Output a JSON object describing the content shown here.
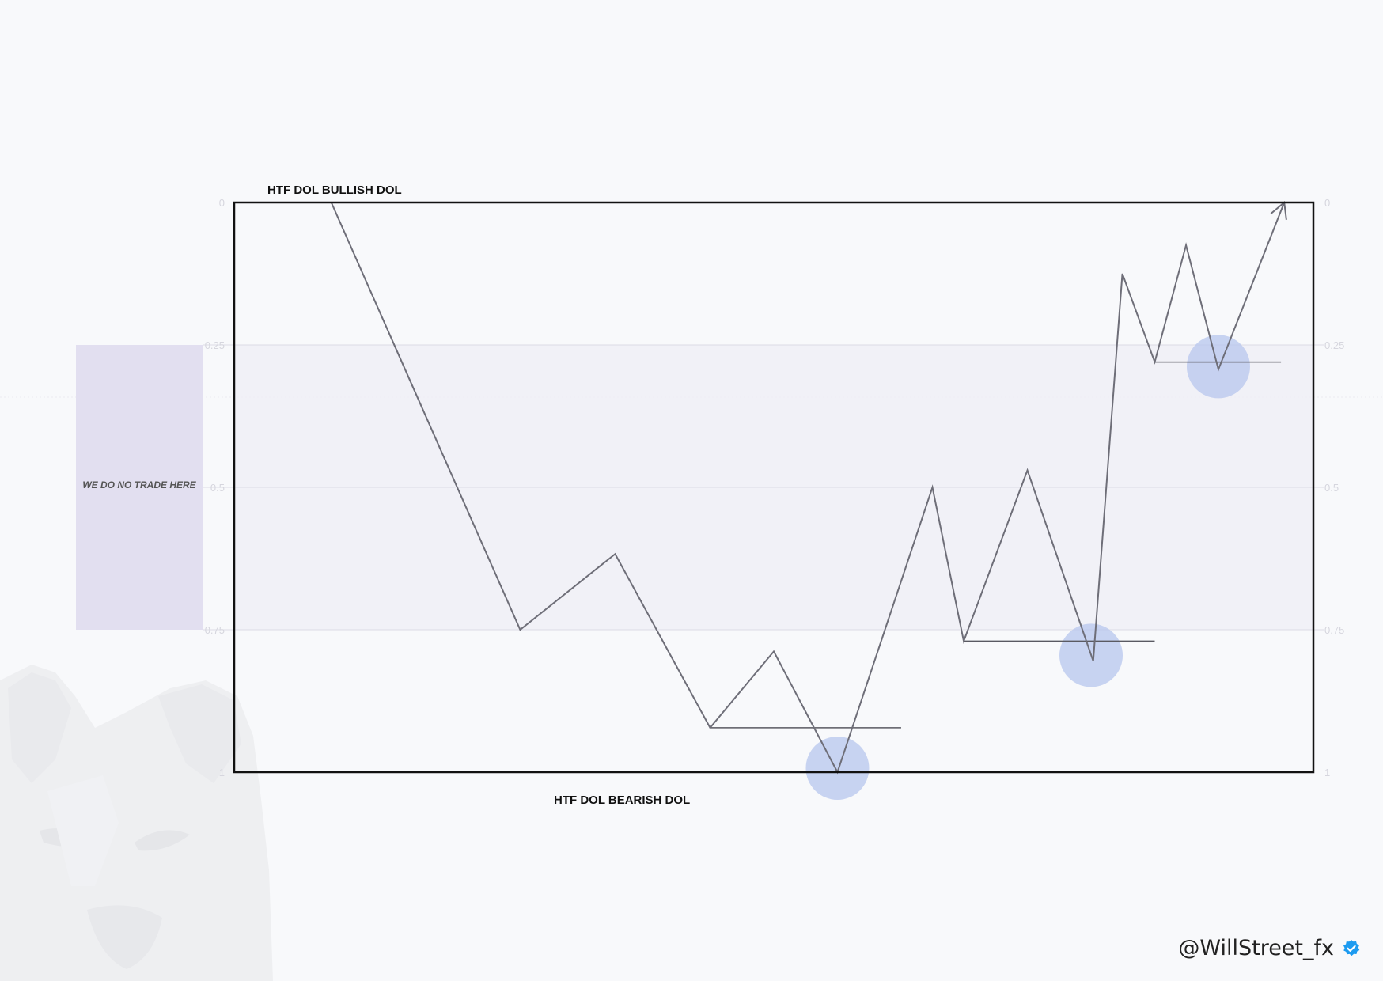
{
  "titles": {
    "top": "HTF DOL BULLISH DOL",
    "bottom": "HTF DOL BEARISH DOL"
  },
  "zone": {
    "label": "WE DO NO TRADE HERE",
    "from": 0.25,
    "to": 0.75
  },
  "handle": {
    "text": "@WillStreet_fx",
    "verified_icon": "verified-badge-icon"
  },
  "colors": {
    "background": "#f8f9fb",
    "frame": "#111111",
    "path": "#6e6e78",
    "zone_fill": "#efedf6",
    "zone_panel": "#e2dff0",
    "highlight": "#b7c6ee",
    "gridline": "#dcdce6",
    "tick": "#d6d6de",
    "verified": "#1d9bf0"
  },
  "chart_data": {
    "type": "line",
    "y_ticks": [
      "0",
      "0.25",
      "0.5",
      "0.75",
      "1"
    ],
    "y_tick_values": [
      0,
      0.25,
      0.5,
      0.75,
      1
    ],
    "ylim": [
      0,
      1
    ],
    "y_inverted": true,
    "series": [
      {
        "points": [
          [
            0.09,
            0.0
          ],
          [
            0.265,
            0.75
          ],
          [
            0.353,
            0.617
          ],
          [
            0.441,
            0.922
          ],
          [
            0.5,
            0.788
          ],
          [
            0.559,
            1.0
          ],
          [
            0.647,
            0.5
          ],
          [
            0.676,
            0.77
          ],
          [
            0.735,
            0.47
          ],
          [
            0.796,
            0.805
          ],
          [
            0.823,
            0.125
          ],
          [
            0.853,
            0.28
          ],
          [
            0.882,
            0.075
          ],
          [
            0.912,
            0.293
          ],
          [
            0.973,
            0.0
          ]
        ]
      }
    ],
    "levels": [
      {
        "y": 0.922,
        "x_start": 0.441,
        "x_end": 0.618
      },
      {
        "y": 0.77,
        "x_start": 0.676,
        "x_end": 0.853
      },
      {
        "y": 0.28,
        "x_start": 0.853,
        "x_end": 0.97
      }
    ],
    "highlights": [
      {
        "x": 0.559,
        "y": 0.993
      },
      {
        "x": 0.794,
        "y": 0.795
      },
      {
        "x": 0.912,
        "y": 0.288
      }
    ],
    "arrow_at_end": true
  }
}
